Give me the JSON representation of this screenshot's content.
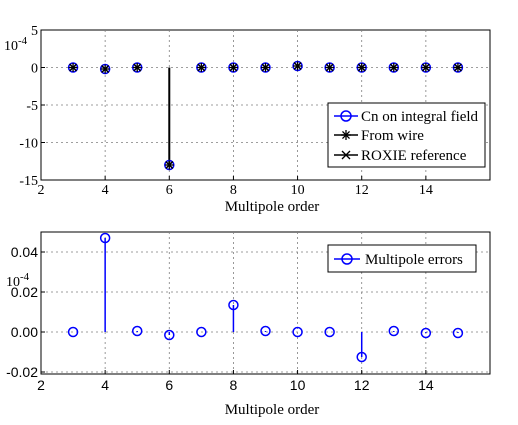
{
  "chart_data": [
    {
      "type": "stem",
      "xlabel": "Multipole order",
      "ylabel": "",
      "y_exponent_label": "10^-4",
      "xlim": [
        2,
        16
      ],
      "ylim": [
        -15,
        5
      ],
      "x_ticks": [
        2,
        4,
        6,
        8,
        10,
        12,
        14
      ],
      "y_ticks": [
        5,
        0,
        -5,
        -10,
        -15
      ],
      "grid": true,
      "legend_position": "lower-right",
      "x": [
        3,
        4,
        5,
        6,
        7,
        8,
        9,
        10,
        11,
        12,
        13,
        14,
        15
      ],
      "series": [
        {
          "name": "Cn on integral field",
          "marker": "circle",
          "color": "#0000ff",
          "values": [
            0.0,
            -0.2,
            0.0,
            -13.0,
            0.0,
            0.0,
            0.0,
            0.2,
            0.0,
            0.0,
            0.0,
            0.0,
            0.0
          ]
        },
        {
          "name": "From wire",
          "marker": "star",
          "color": "#000000",
          "values": [
            0.0,
            -0.2,
            0.0,
            -13.0,
            0.0,
            0.0,
            0.0,
            0.2,
            0.0,
            0.0,
            0.0,
            0.0,
            0.0
          ]
        },
        {
          "name": "ROXIE reference",
          "marker": "x",
          "color": "#000000",
          "values": [
            0.0,
            -0.2,
            0.0,
            -13.0,
            0.0,
            0.0,
            0.0,
            0.2,
            0.0,
            0.0,
            0.0,
            0.0,
            0.0
          ]
        }
      ]
    },
    {
      "type": "stem",
      "xlabel": "Multipole order",
      "ylabel": "",
      "y_exponent_label": "10^-4",
      "xlim": [
        2,
        16
      ],
      "ylim": [
        -0.021,
        0.05
      ],
      "x_ticks": [
        2,
        4,
        6,
        8,
        10,
        12,
        14
      ],
      "y_ticks": [
        "0.04",
        "0.02",
        "0.00",
        "-0.02"
      ],
      "y_tick_values": [
        0.04,
        0.02,
        0.0,
        -0.02
      ],
      "grid": true,
      "legend_position": "top-right",
      "x": [
        3,
        4,
        5,
        6,
        7,
        8,
        9,
        10,
        11,
        12,
        13,
        14,
        15
      ],
      "series": [
        {
          "name": "Multipole errors",
          "marker": "circle",
          "color": "#0000ff",
          "values": [
            0.0,
            0.047,
            0.0005,
            -0.0015,
            0.0,
            0.0135,
            0.0005,
            0.0,
            0.0,
            -0.0125,
            0.0005,
            -0.0005,
            -0.0005
          ]
        }
      ]
    }
  ]
}
